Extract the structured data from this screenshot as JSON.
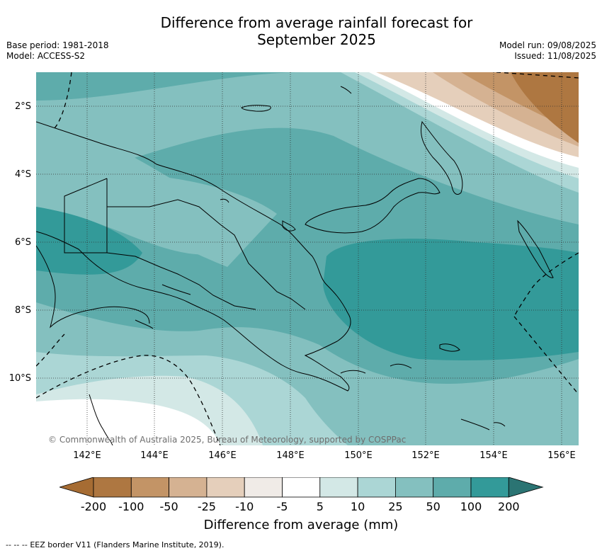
{
  "title_line1": "Difference from average rainfall forecast for",
  "title_line2": "September 2025",
  "base_period": "Base period: 1981-2018",
  "model": "Model: ACCESS-S2",
  "model_run": "Model run: 09/08/2025",
  "issued": "Issued: 11/08/2025",
  "lat_labels": [
    "2°S",
    "4°S",
    "6°S",
    "8°S",
    "10°S"
  ],
  "lon_labels": [
    "142°E",
    "144°E",
    "146°E",
    "148°E",
    "150°E",
    "152°E",
    "154°E",
    "156°E"
  ],
  "credit": "© Commonwealth of Australia 2025, Bureau of Meteorology, supported by COSPPac",
  "colorbar": {
    "ticks": [
      "-200",
      "-100",
      "-50",
      "-25",
      "-10",
      "-5",
      "5",
      "10",
      "25",
      "50",
      "100",
      "200"
    ],
    "colors": [
      "#a66c33",
      "#ae7741",
      "#c39466",
      "#d5b292",
      "#e5cfbb",
      "#f0ebe7",
      "#ffffff",
      "#d3e8e6",
      "#abd6d5",
      "#84c0bf",
      "#5eacab",
      "#339a99",
      "#2b7473"
    ],
    "label": "Difference from average (mm)"
  },
  "eez_legend": "EEZ border V11 (Flanders Marine Institute, 2019)."
}
